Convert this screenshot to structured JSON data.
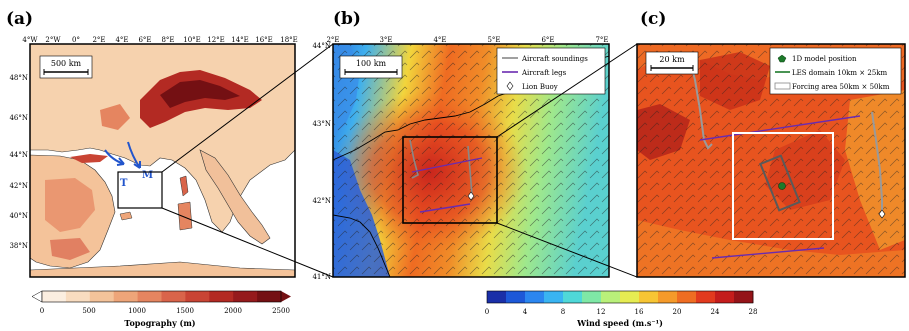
{
  "panels": {
    "a": {
      "letter": "(a)",
      "lon_ticks": [
        "4°W",
        "2°W",
        "0°",
        "2°E",
        "4°E",
        "6°E",
        "8°E",
        "10°E",
        "12°E",
        "14°E",
        "16°E",
        "18°E"
      ],
      "lat_ticks": [
        "48°N",
        "46°N",
        "44°N",
        "42°N",
        "40°N",
        "38°N"
      ],
      "scale_label": "500 km",
      "arrow_labels": [
        "T",
        "M"
      ]
    },
    "b": {
      "letter": "(b)",
      "lon_ticks": [
        "2°E",
        "3°E",
        "4°E",
        "5°E",
        "6°E",
        "7°E"
      ],
      "lat_ticks": [
        "44°N",
        "43°N",
        "42°N",
        "41°N"
      ],
      "scale_label": "100 km",
      "legend": [
        "Aircraft soundings",
        "Aircraft legs",
        "Lion Buoy"
      ]
    },
    "c": {
      "letter": "(c)",
      "scale_label": "20 km",
      "legend": [
        "1D model position",
        "LES domain 10km × 25km",
        "Forcing area 50km × 50km"
      ]
    }
  },
  "colorbars": {
    "topography": {
      "label": "Topography (m)",
      "ticks": [
        "0",
        "500",
        "1000",
        "1500",
        "2000",
        "2500"
      ],
      "colors": [
        "#fbeee0",
        "#f8dcc0",
        "#f4c39a",
        "#eea579",
        "#e58560",
        "#d9644a",
        "#c94434",
        "#b32a23",
        "#951a1c",
        "#741013"
      ]
    },
    "wind": {
      "label": "Wind speed (m.s⁻¹)",
      "ticks": [
        "0",
        "4",
        "8",
        "12",
        "16",
        "20",
        "24",
        "28"
      ],
      "colors": [
        "#1a2fa8",
        "#1d58d8",
        "#2b86f0",
        "#39b4f2",
        "#4fd8d8",
        "#7fe8a6",
        "#b9f07a",
        "#e6ec52",
        "#f7c534",
        "#f59a2a",
        "#ef6d22",
        "#e23a1e",
        "#c41d1c",
        "#941318"
      ]
    }
  }
}
